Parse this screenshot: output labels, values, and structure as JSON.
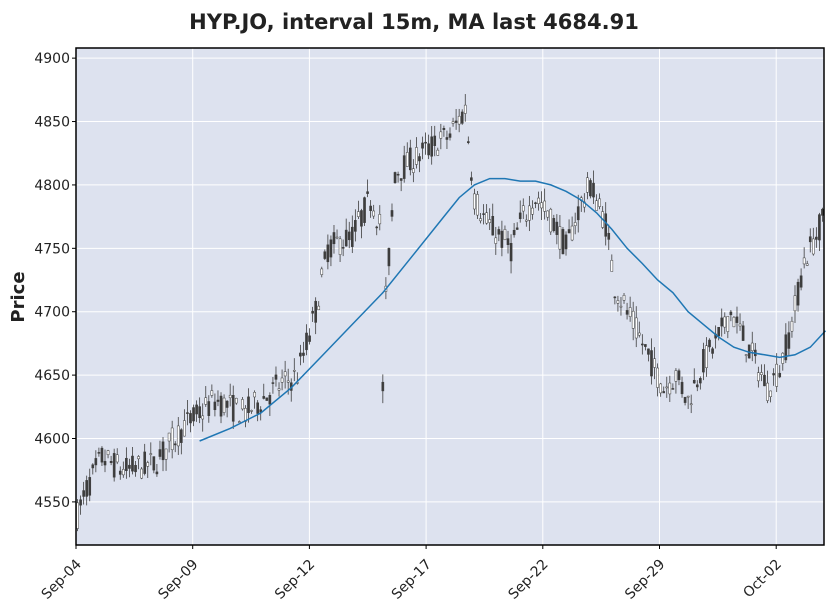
{
  "chart_data": {
    "type": "candlestick",
    "title": "HYP.JO, interval 15m, MA last 4684.91",
    "xlabel": "",
    "ylabel": "Price",
    "ylim": [
      4516,
      4908
    ],
    "y_ticks": [
      4550,
      4600,
      4650,
      4700,
      4750,
      4800,
      4850,
      4900
    ],
    "x_tick_labels": [
      "Sep-04",
      "Sep-09",
      "Sep-12",
      "Sep-17",
      "Sep-22",
      "Sep-29",
      "Oct-02"
    ],
    "grid": true,
    "colors": {
      "background": "#dde2ef",
      "grid": "#ffffff",
      "candles": "#3d3d3d",
      "moving_average": "#1f77b4",
      "frame": "#000000"
    },
    "price_path_anchors": [
      [
        0,
        4540
      ],
      [
        3,
        4560
      ],
      [
        8,
        4585
      ],
      [
        15,
        4575
      ],
      [
        25,
        4580
      ],
      [
        35,
        4610
      ],
      [
        45,
        4630
      ],
      [
        55,
        4620
      ],
      [
        65,
        4640
      ],
      [
        72,
        4650
      ],
      [
        78,
        4700
      ],
      [
        82,
        4750
      ],
      [
        90,
        4760
      ],
      [
        96,
        4790
      ],
      [
        99,
        4770
      ],
      [
        100,
        4640
      ],
      [
        101,
        4710
      ],
      [
        104,
        4810
      ],
      [
        110,
        4820
      ],
      [
        116,
        4830
      ],
      [
        122,
        4840
      ],
      [
        127,
        4860
      ],
      [
        130,
        4790
      ],
      [
        134,
        4770
      ],
      [
        138,
        4760
      ],
      [
        142,
        4750
      ],
      [
        145,
        4770
      ],
      [
        150,
        4790
      ],
      [
        156,
        4770
      ],
      [
        160,
        4750
      ],
      [
        164,
        4780
      ],
      [
        168,
        4800
      ],
      [
        173,
        4770
      ],
      [
        176,
        4720
      ],
      [
        180,
        4700
      ],
      [
        184,
        4680
      ],
      [
        188,
        4660
      ],
      [
        192,
        4640
      ],
      [
        196,
        4650
      ],
      [
        200,
        4630
      ],
      [
        205,
        4660
      ],
      [
        210,
        4680
      ],
      [
        214,
        4700
      ],
      [
        220,
        4670
      ],
      [
        226,
        4640
      ],
      [
        230,
        4655
      ],
      [
        234,
        4690
      ],
      [
        238,
        4740
      ],
      [
        242,
        4760
      ],
      [
        245,
        4780
      ]
    ],
    "moving_average_path": [
      [
        40,
        4598
      ],
      [
        50,
        4608
      ],
      [
        60,
        4620
      ],
      [
        70,
        4640
      ],
      [
        80,
        4665
      ],
      [
        90,
        4690
      ],
      [
        100,
        4715
      ],
      [
        110,
        4745
      ],
      [
        120,
        4775
      ],
      [
        125,
        4790
      ],
      [
        130,
        4800
      ],
      [
        135,
        4805
      ],
      [
        140,
        4805
      ],
      [
        145,
        4803
      ],
      [
        150,
        4803
      ],
      [
        155,
        4800
      ],
      [
        160,
        4795
      ],
      [
        165,
        4788
      ],
      [
        170,
        4778
      ],
      [
        175,
        4765
      ],
      [
        180,
        4750
      ],
      [
        185,
        4738
      ],
      [
        190,
        4725
      ],
      [
        195,
        4715
      ],
      [
        200,
        4700
      ],
      [
        205,
        4690
      ],
      [
        210,
        4680
      ],
      [
        215,
        4672
      ],
      [
        220,
        4668
      ],
      [
        225,
        4666
      ],
      [
        230,
        4664
      ],
      [
        235,
        4666
      ],
      [
        240,
        4672
      ],
      [
        245,
        4684.91
      ]
    ],
    "moving_average_last": 4684.91,
    "total_bars": 245,
    "ma_start_index": 40
  }
}
